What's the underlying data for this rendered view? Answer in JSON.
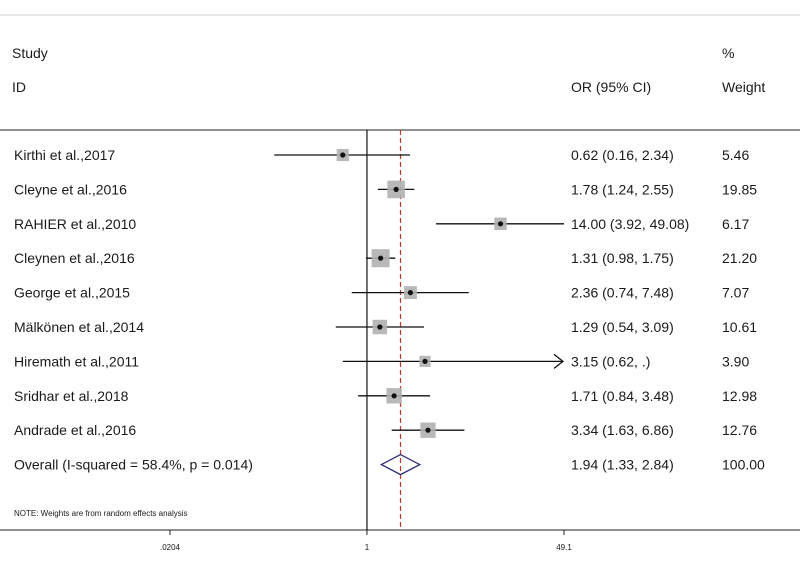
{
  "chart_data": {
    "type": "forest",
    "headers": {
      "study_line1": "Study",
      "study_line2": "ID",
      "ci": "OR (95% CI)",
      "weight_line1": "%",
      "weight_line2": "Weight"
    },
    "studies": [
      {
        "id": "Kirthi et al.,2017",
        "or": 0.62,
        "lower": 0.16,
        "upper": 2.34,
        "ci_text": "0.62 (0.16, 2.34)",
        "weight": 5.46,
        "weight_text": "5.46"
      },
      {
        "id": "Cleyne et al.,2016",
        "or": 1.78,
        "lower": 1.24,
        "upper": 2.55,
        "ci_text": "1.78 (1.24, 2.55)",
        "weight": 19.85,
        "weight_text": "19.85"
      },
      {
        "id": "RAHIER et al.,2010",
        "or": 14.0,
        "lower": 3.92,
        "upper": 49.08,
        "ci_text": "14.00 (3.92, 49.08)",
        "weight": 6.17,
        "weight_text": "6.17"
      },
      {
        "id": "Cleynen et al.,2016",
        "or": 1.31,
        "lower": 0.98,
        "upper": 1.75,
        "ci_text": "1.31 (0.98, 1.75)",
        "weight": 21.2,
        "weight_text": "21.20"
      },
      {
        "id": "George et al.,2015",
        "or": 2.36,
        "lower": 0.74,
        "upper": 7.48,
        "ci_text": "2.36 (0.74, 7.48)",
        "weight": 7.07,
        "weight_text": "7.07"
      },
      {
        "id": "Mälkönen et al.,2014",
        "or": 1.29,
        "lower": 0.54,
        "upper": 3.09,
        "ci_text": "1.29 (0.54, 3.09)",
        "weight": 10.61,
        "weight_text": "10.61"
      },
      {
        "id": "Hiremath et al.,2011",
        "or": 3.15,
        "lower": 0.62,
        "upper": null,
        "ci_text": "3.15 (0.62, .)",
        "weight": 3.9,
        "weight_text": "3.90"
      },
      {
        "id": "Sridhar et al.,2018",
        "or": 1.71,
        "lower": 0.84,
        "upper": 3.48,
        "ci_text": "1.71 (0.84, 3.48)",
        "weight": 12.98,
        "weight_text": "12.98"
      },
      {
        "id": "Andrade et al.,2016",
        "or": 3.34,
        "lower": 1.63,
        "upper": 6.86,
        "ci_text": "3.34 (1.63, 6.86)",
        "weight": 12.76,
        "weight_text": "12.76"
      }
    ],
    "overall": {
      "label": "Overall  (I-squared = 58.4%, p = 0.014)",
      "or": 1.94,
      "lower": 1.33,
      "upper": 2.84,
      "ci_text": "1.94 (1.33, 2.84)",
      "weight_text": "100.00"
    },
    "note": "NOTE: Weights are from random effects analysis",
    "x_scale": "log",
    "x_ticks": [
      {
        "value": 0.0204,
        "label": ".0204"
      },
      {
        "value": 1,
        "label": "1"
      },
      {
        "value": 49.1,
        "label": "49.1"
      }
    ],
    "colors": {
      "point": "#111111",
      "box": "#b0b0b0",
      "overall_line": "#c0392b",
      "diamond": "#2b2b7a",
      "null_line": "#111111"
    }
  }
}
